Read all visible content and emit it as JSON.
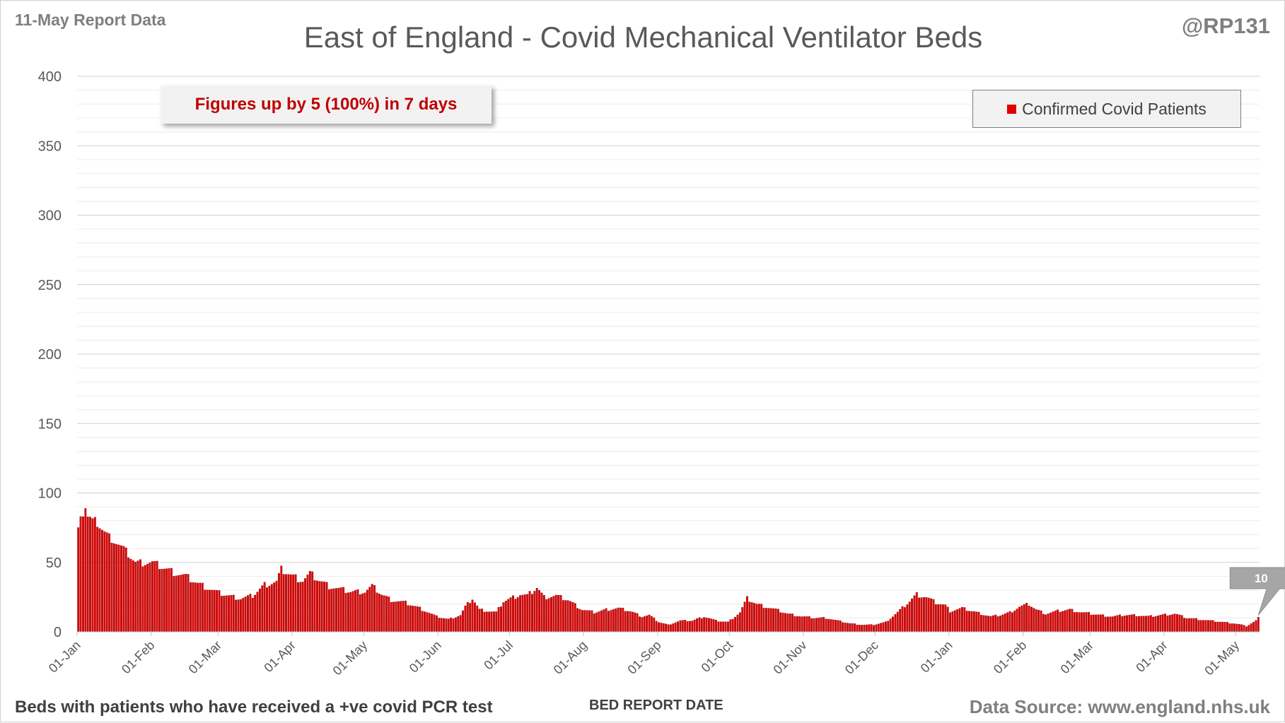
{
  "header": {
    "report_date_label": "11-May Report Data",
    "author_handle": "@RP131"
  },
  "callout": {
    "text": "Figures up by 5 (100%) in 7 days"
  },
  "footer": {
    "footnote": "Beds with patients who have received a +ve covid PCR test",
    "data_source": "Data Source: www.england.nhs.uk"
  },
  "colors": {
    "bar": "#e00000",
    "bar_edge": "#8b0000",
    "gridline": "#d9d9d9",
    "callout_text": "#c00000"
  },
  "chart_data": {
    "type": "bar",
    "title": "East of England - Covid Mechanical Ventilator Beds",
    "xlabel": "BED REPORT DATE",
    "ylabel": "",
    "ylim": [
      0,
      400
    ],
    "yticks": [
      0,
      50,
      100,
      150,
      200,
      250,
      300,
      350,
      400
    ],
    "grid": true,
    "legend_position": "top-right",
    "x_start": "2021-01-01",
    "x_end": "2022-05-10",
    "xtick_labels": [
      "01-Jan",
      "01-Feb",
      "01-Mar",
      "01-Apr",
      "01-May",
      "01-Jun",
      "01-Jul",
      "01-Aug",
      "01-Sep",
      "01-Oct",
      "01-Nov",
      "01-Dec",
      "01-Jan",
      "01-Feb",
      "01-Mar",
      "01-Apr",
      "01-May"
    ],
    "xtick_dates": [
      "2021-01-01",
      "2021-02-01",
      "2021-03-01",
      "2021-04-01",
      "2021-05-01",
      "2021-06-01",
      "2021-07-01",
      "2021-08-01",
      "2021-09-01",
      "2021-10-01",
      "2021-11-01",
      "2021-12-01",
      "2022-01-01",
      "2022-02-01",
      "2022-03-01",
      "2022-04-01",
      "2022-05-01"
    ],
    "series": [
      {
        "name": "Confirmed Covid Patients",
        "color": "#e00000",
        "points": [
          [
            "2021-01-01",
            73
          ],
          [
            "2021-01-02",
            86
          ],
          [
            "2021-01-03",
            85
          ],
          [
            "2021-01-04",
            90
          ],
          [
            "2021-01-05",
            83
          ],
          [
            "2021-01-06",
            82
          ],
          [
            "2021-01-07",
            80
          ],
          [
            "2021-01-08",
            80
          ],
          [
            "2021-01-09",
            78
          ],
          [
            "2021-01-10",
            76
          ],
          [
            "2021-01-11",
            74
          ],
          [
            "2021-01-12",
            72
          ],
          [
            "2021-01-15",
            67
          ],
          [
            "2021-01-20",
            60
          ],
          [
            "2021-01-25",
            50
          ],
          [
            "2021-01-28",
            50
          ],
          [
            "2021-02-01",
            50
          ],
          [
            "2021-02-06",
            46
          ],
          [
            "2021-02-10",
            43
          ],
          [
            "2021-02-15",
            40
          ],
          [
            "2021-02-20",
            35
          ],
          [
            "2021-02-25",
            31
          ],
          [
            "2021-03-01",
            28
          ],
          [
            "2021-03-05",
            26
          ],
          [
            "2021-03-10",
            24
          ],
          [
            "2021-03-15",
            26
          ],
          [
            "2021-03-20",
            34
          ],
          [
            "2021-03-25",
            36
          ],
          [
            "2021-03-27",
            45
          ],
          [
            "2021-04-01",
            40
          ],
          [
            "2021-04-05",
            37
          ],
          [
            "2021-04-08",
            42
          ],
          [
            "2021-04-12",
            37
          ],
          [
            "2021-04-16",
            33
          ],
          [
            "2021-04-20",
            31
          ],
          [
            "2021-04-25",
            29
          ],
          [
            "2021-05-01",
            29
          ],
          [
            "2021-05-04",
            33
          ],
          [
            "2021-05-08",
            27
          ],
          [
            "2021-05-12",
            23
          ],
          [
            "2021-05-18",
            21
          ],
          [
            "2021-05-24",
            17
          ],
          [
            "2021-05-31",
            11
          ],
          [
            "2021-06-05",
            9
          ],
          [
            "2021-06-10",
            12
          ],
          [
            "2021-06-12",
            18
          ],
          [
            "2021-06-15",
            24
          ],
          [
            "2021-06-18",
            16
          ],
          [
            "2021-06-25",
            14
          ],
          [
            "2021-06-28",
            22
          ],
          [
            "2021-07-01",
            24
          ],
          [
            "2021-07-05",
            27
          ],
          [
            "2021-07-08",
            26
          ],
          [
            "2021-07-12",
            32
          ],
          [
            "2021-07-15",
            25
          ],
          [
            "2021-07-20",
            26
          ],
          [
            "2021-07-25",
            23
          ],
          [
            "2021-07-31",
            16
          ],
          [
            "2021-08-05",
            14
          ],
          [
            "2021-08-10",
            16
          ],
          [
            "2021-08-15",
            17
          ],
          [
            "2021-08-20",
            15
          ],
          [
            "2021-08-25",
            11
          ],
          [
            "2021-08-28",
            12
          ],
          [
            "2021-09-01",
            7
          ],
          [
            "2021-09-05",
            5
          ],
          [
            "2021-09-10",
            8
          ],
          [
            "2021-09-15",
            8
          ],
          [
            "2021-09-20",
            11
          ],
          [
            "2021-09-25",
            8
          ],
          [
            "2021-09-30",
            7
          ],
          [
            "2021-10-05",
            14
          ],
          [
            "2021-10-08",
            24
          ],
          [
            "2021-10-12",
            20
          ],
          [
            "2021-10-16",
            18
          ],
          [
            "2021-10-20",
            16
          ],
          [
            "2021-10-25",
            13
          ],
          [
            "2021-10-31",
            11
          ],
          [
            "2021-11-05",
            10
          ],
          [
            "2021-11-10",
            10
          ],
          [
            "2021-11-15",
            8
          ],
          [
            "2021-11-20",
            6
          ],
          [
            "2021-11-25",
            5
          ],
          [
            "2021-11-30",
            5
          ],
          [
            "2021-12-05",
            7
          ],
          [
            "2021-12-10",
            14
          ],
          [
            "2021-12-15",
            22
          ],
          [
            "2021-12-18",
            27
          ],
          [
            "2021-12-22",
            25
          ],
          [
            "2021-12-26",
            21
          ],
          [
            "2021-12-30",
            19
          ],
          [
            "2022-01-01",
            15
          ],
          [
            "2022-01-06",
            17
          ],
          [
            "2022-01-10",
            15
          ],
          [
            "2022-01-14",
            13
          ],
          [
            "2022-01-18",
            11
          ],
          [
            "2022-01-22",
            12
          ],
          [
            "2022-01-26",
            14
          ],
          [
            "2022-01-30",
            18
          ],
          [
            "2022-02-03",
            20
          ],
          [
            "2022-02-06",
            16
          ],
          [
            "2022-02-10",
            13
          ],
          [
            "2022-02-15",
            15
          ],
          [
            "2022-02-20",
            16
          ],
          [
            "2022-02-25",
            14
          ],
          [
            "2022-03-01",
            13
          ],
          [
            "2022-03-05",
            12
          ],
          [
            "2022-03-10",
            11
          ],
          [
            "2022-03-15",
            12
          ],
          [
            "2022-03-20",
            12
          ],
          [
            "2022-03-25",
            11
          ],
          [
            "2022-03-30",
            12
          ],
          [
            "2022-04-05",
            13
          ],
          [
            "2022-04-10",
            10
          ],
          [
            "2022-04-15",
            9
          ],
          [
            "2022-04-20",
            8
          ],
          [
            "2022-04-25",
            7
          ],
          [
            "2022-04-30",
            6
          ],
          [
            "2022-05-03",
            5
          ],
          [
            "2022-05-05",
            4
          ],
          [
            "2022-05-07",
            6
          ],
          [
            "2022-05-09",
            8
          ],
          [
            "2022-05-10",
            10
          ]
        ]
      }
    ],
    "annotations": [
      {
        "date": "2022-05-10",
        "text": "10"
      }
    ]
  }
}
